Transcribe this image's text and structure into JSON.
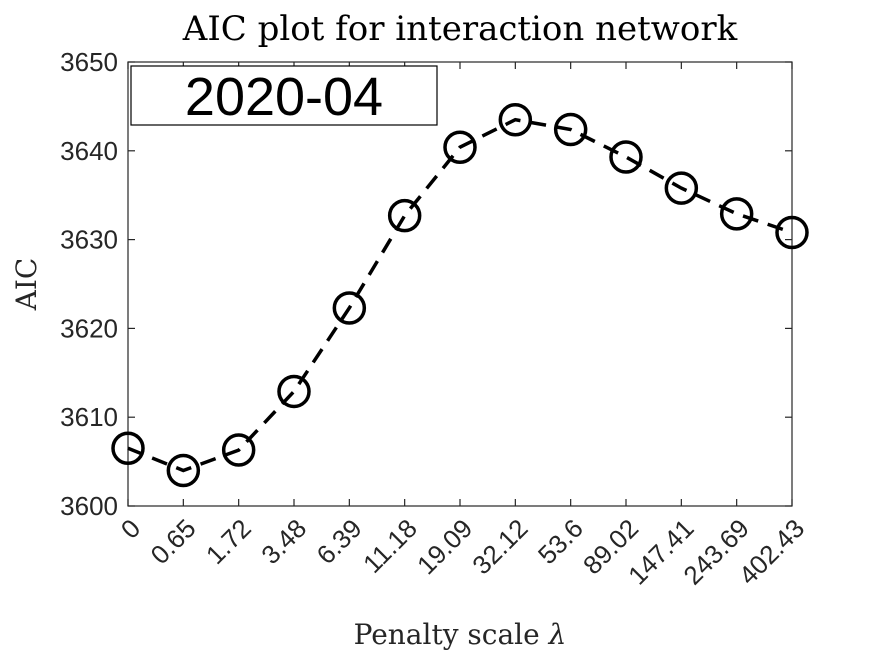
{
  "chart_data": {
    "type": "line",
    "title": "AIC plot for interaction network",
    "xlabel": "Penalty scale",
    "xlabel_symbol": "λ",
    "ylabel": "AIC",
    "annotation": "2020-04",
    "categories": [
      "0",
      "0.65",
      "1.72",
      "3.48",
      "6.39",
      "11.18",
      "19.09",
      "32.12",
      "53.6",
      "89.02",
      "147.41",
      "243.69",
      "402.43"
    ],
    "values": [
      3606.5,
      3604.0,
      3606.3,
      3612.9,
      3622.3,
      3632.7,
      3640.4,
      3643.5,
      3642.4,
      3639.3,
      3635.8,
      3632.9,
      3630.8
    ],
    "ylim": [
      3600,
      3650
    ],
    "yticks": [
      3600,
      3610,
      3620,
      3630,
      3640,
      3650
    ],
    "marker": "circle",
    "line_style": "dashed",
    "line_color": "#000000",
    "grid": false
  }
}
